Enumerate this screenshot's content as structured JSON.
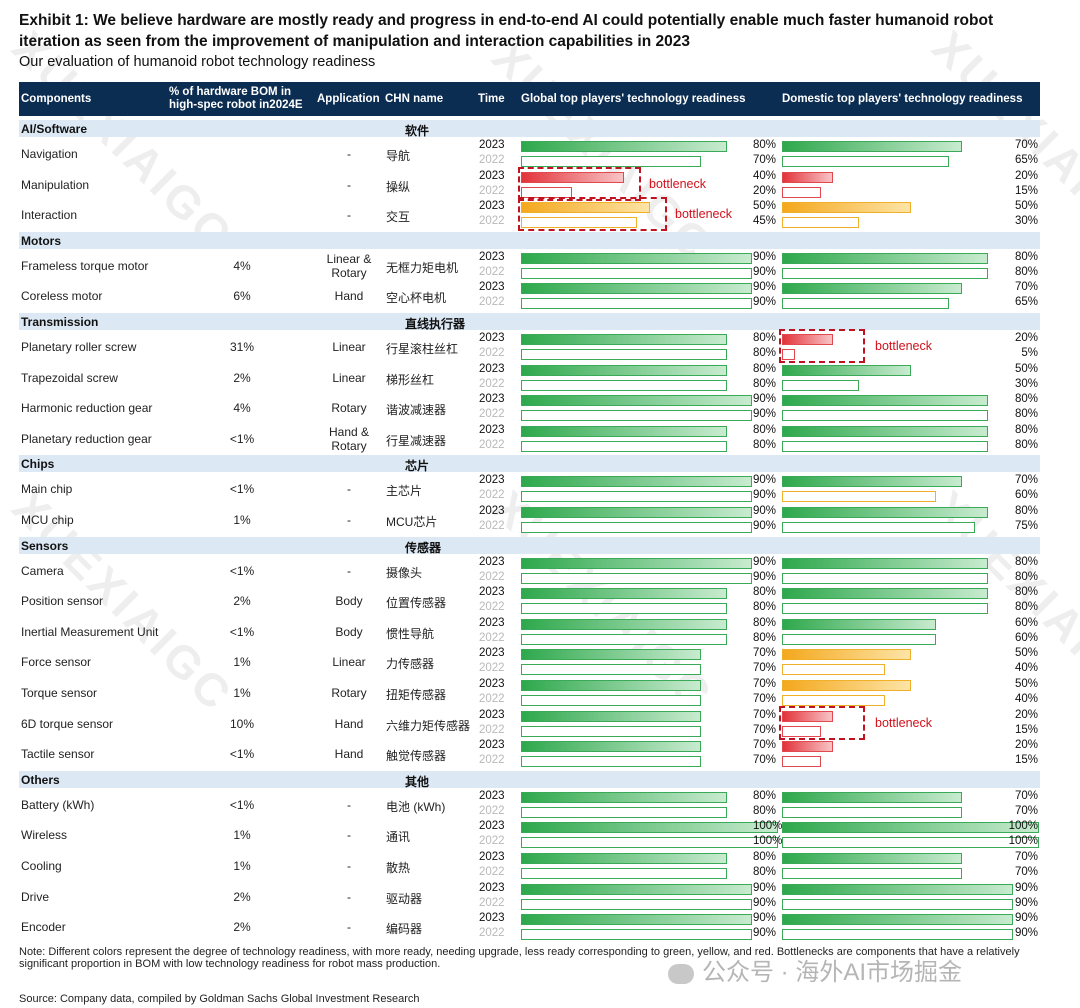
{
  "exhibit": {
    "title": "Exhibit 1: We believe hardware are mostly ready and progress in end-to-end AI could potentially enable much faster humanoid robot iteration as seen from the improvement of manipulation and interaction capabilities in 2023",
    "subtitle": "Our evaluation of humanoid robot technology readiness"
  },
  "headers": {
    "components": "Components",
    "bom": "% of hardware BOM in high-spec robot in2024E",
    "application": "Application",
    "chn": "CHN name",
    "time": "Time",
    "global": "Global top players' technology readiness",
    "domestic": "Domestic top players' technology readiness"
  },
  "colors": {
    "green": "#4fb96a",
    "yellow": "#f5b62b",
    "red": "#ea4a50",
    "header": "#0c2d52",
    "group": "#dce9f5"
  },
  "bottleneck_label": "bottleneck",
  "table": [
    {
      "group": "AI/Software",
      "chn": "软件",
      "rows": [
        {
          "name": "Navigation",
          "bom": "",
          "app": "-",
          "chn": "导航",
          "g": [
            80,
            70
          ],
          "gc": [
            "green",
            "green"
          ],
          "d": [
            70,
            65
          ],
          "dc": [
            "green",
            "green"
          ]
        },
        {
          "name": "Manipulation",
          "bom": "",
          "app": "-",
          "chn": "操纵",
          "g": [
            40,
            20
          ],
          "gc": [
            "red",
            "red"
          ],
          "d": [
            20,
            15
          ],
          "dc": [
            "red",
            "red"
          ]
        },
        {
          "name": "Interaction",
          "bom": "",
          "app": "-",
          "chn": "交互",
          "g": [
            50,
            45
          ],
          "gc": [
            "yellow",
            "yellow"
          ],
          "d": [
            50,
            30
          ],
          "dc": [
            "yellow",
            "yellow"
          ]
        }
      ]
    },
    {
      "group": "Motors",
      "chn": "",
      "rows": [
        {
          "name": "Frameless torque motor",
          "bom": "4%",
          "app": "Linear & Rotary",
          "chn": "无框力矩电机",
          "g": [
            90,
            90
          ],
          "gc": [
            "green",
            "green"
          ],
          "d": [
            80,
            80
          ],
          "dc": [
            "green",
            "green"
          ]
        },
        {
          "name": "Coreless motor",
          "bom": "6%",
          "app": "Hand",
          "chn": "空心杯电机",
          "g": [
            90,
            90
          ],
          "gc": [
            "green",
            "green"
          ],
          "d": [
            70,
            65
          ],
          "dc": [
            "green",
            "green"
          ]
        }
      ]
    },
    {
      "group": "Transmission",
      "chn": "直线执行器",
      "rows": [
        {
          "name": "Planetary roller screw",
          "bom": "31%",
          "app": "Linear",
          "chn": "行星滚柱丝杠",
          "g": [
            80,
            80
          ],
          "gc": [
            "green",
            "green"
          ],
          "d": [
            20,
            5
          ],
          "dc": [
            "red",
            "red"
          ]
        },
        {
          "name": "Trapezoidal screw",
          "bom": "2%",
          "app": "Linear",
          "chn": "梯形丝杠",
          "g": [
            80,
            80
          ],
          "gc": [
            "green",
            "green"
          ],
          "d": [
            50,
            30
          ],
          "dc": [
            "green",
            "green"
          ]
        },
        {
          "name": "Harmonic reduction gear",
          "bom": "4%",
          "app": "Rotary",
          "chn": "谐波减速器",
          "g": [
            90,
            90
          ],
          "gc": [
            "green",
            "green"
          ],
          "d": [
            80,
            80
          ],
          "dc": [
            "green",
            "green"
          ]
        },
        {
          "name": "Planetary reduction gear",
          "bom": "<1%",
          "app": "Hand & Rotary",
          "chn": "行星减速器",
          "g": [
            80,
            80
          ],
          "gc": [
            "green",
            "green"
          ],
          "d": [
            80,
            80
          ],
          "dc": [
            "green",
            "green"
          ]
        }
      ]
    },
    {
      "group": "Chips",
      "chn": "芯片",
      "rows": [
        {
          "name": "Main chip",
          "bom": "<1%",
          "app": "-",
          "chn": "主芯片",
          "g": [
            90,
            90
          ],
          "gc": [
            "green",
            "green"
          ],
          "d": [
            70,
            60
          ],
          "dc": [
            "green",
            "yellow"
          ]
        },
        {
          "name": "MCU chip",
          "bom": "1%",
          "app": "-",
          "chn": "MCU芯片",
          "g": [
            90,
            90
          ],
          "gc": [
            "green",
            "green"
          ],
          "d": [
            80,
            75
          ],
          "dc": [
            "green",
            "green"
          ]
        }
      ]
    },
    {
      "group": "Sensors",
      "chn": "传感器",
      "rows": [
        {
          "name": "Camera",
          "bom": "<1%",
          "app": "-",
          "chn": "摄像头",
          "g": [
            90,
            90
          ],
          "gc": [
            "green",
            "green"
          ],
          "d": [
            80,
            80
          ],
          "dc": [
            "green",
            "green"
          ]
        },
        {
          "name": "Position sensor",
          "bom": "2%",
          "app": "Body",
          "chn": "位置传感器",
          "g": [
            80,
            80
          ],
          "gc": [
            "green",
            "green"
          ],
          "d": [
            80,
            80
          ],
          "dc": [
            "green",
            "green"
          ]
        },
        {
          "name": "Inertial Measurement Unit",
          "bom": "<1%",
          "app": "Body",
          "chn": "惯性导航",
          "g": [
            80,
            80
          ],
          "gc": [
            "green",
            "green"
          ],
          "d": [
            60,
            60
          ],
          "dc": [
            "green",
            "green"
          ]
        },
        {
          "name": "Force sensor",
          "bom": "1%",
          "app": "Linear",
          "chn": "力传感器",
          "g": [
            70,
            70
          ],
          "gc": [
            "green",
            "green"
          ],
          "d": [
            50,
            40
          ],
          "dc": [
            "yellow",
            "yellow"
          ]
        },
        {
          "name": "Torque sensor",
          "bom": "1%",
          "app": "Rotary",
          "chn": "扭矩传感器",
          "g": [
            70,
            70
          ],
          "gc": [
            "green",
            "green"
          ],
          "d": [
            50,
            40
          ],
          "dc": [
            "yellow",
            "yellow"
          ]
        },
        {
          "name": "6D torque sensor",
          "bom": "10%",
          "app": "Hand",
          "chn": "六维力矩传感器",
          "g": [
            70,
            70
          ],
          "gc": [
            "green",
            "green"
          ],
          "d": [
            20,
            15
          ],
          "dc": [
            "red",
            "red"
          ]
        },
        {
          "name": "Tactile sensor",
          "bom": "<1%",
          "app": "Hand",
          "chn": "触觉传感器",
          "g": [
            70,
            70
          ],
          "gc": [
            "green",
            "green"
          ],
          "d": [
            20,
            15
          ],
          "dc": [
            "red",
            "red"
          ]
        }
      ]
    },
    {
      "group": "Others",
      "chn": "其他",
      "rows": [
        {
          "name": "Battery (kWh)",
          "bom": "<1%",
          "app": "-",
          "chn": "电池 (kWh)",
          "g": [
            80,
            80
          ],
          "gc": [
            "green",
            "green"
          ],
          "d": [
            70,
            70
          ],
          "dc": [
            "green",
            "green"
          ]
        },
        {
          "name": "Wireless",
          "bom": "1%",
          "app": "-",
          "chn": "通讯",
          "g": [
            100,
            100
          ],
          "gc": [
            "green",
            "green"
          ],
          "d": [
            100,
            100
          ],
          "dc": [
            "green",
            "green"
          ]
        },
        {
          "name": "Cooling",
          "bom": "1%",
          "app": "-",
          "chn": "散热",
          "g": [
            80,
            80
          ],
          "gc": [
            "green",
            "green"
          ],
          "d": [
            70,
            70
          ],
          "dc": [
            "green",
            "green"
          ]
        },
        {
          "name": "Drive",
          "bom": "2%",
          "app": "-",
          "chn": "驱动器",
          "g": [
            90,
            90
          ],
          "gc": [
            "green",
            "green"
          ],
          "d": [
            90,
            90
          ],
          "dc": [
            "green",
            "green"
          ]
        },
        {
          "name": "Encoder",
          "bom": "2%",
          "app": "-",
          "chn": "编码器",
          "g": [
            90,
            90
          ],
          "gc": [
            "green",
            "green"
          ],
          "d": [
            90,
            90
          ],
          "dc": [
            "green",
            "green"
          ]
        }
      ]
    }
  ],
  "years": [
    "2023",
    "2022"
  ],
  "bottlenecks": [
    {
      "row": "Manipulation",
      "side": "global"
    },
    {
      "row": "Interaction",
      "side": "global"
    },
    {
      "row": "Planetary roller screw",
      "side": "domestic"
    },
    {
      "row": "6D torque sensor",
      "side": "domestic"
    }
  ],
  "footer": {
    "note": "Note: Different colors represent the degree of technology readiness, with more ready, needing upgrade, less ready corresponding to green, yellow, and red. Bottlenecks are components that have a relatively significant proportion in BOM with low technology readiness for robot mass production.",
    "source": "Source: Company data, compiled by Goldman Sachs Global Investment Research"
  },
  "watermark": {
    "text": "XUEXIAIGC",
    "channel": "公众号 · 海外AI市场掘金"
  }
}
